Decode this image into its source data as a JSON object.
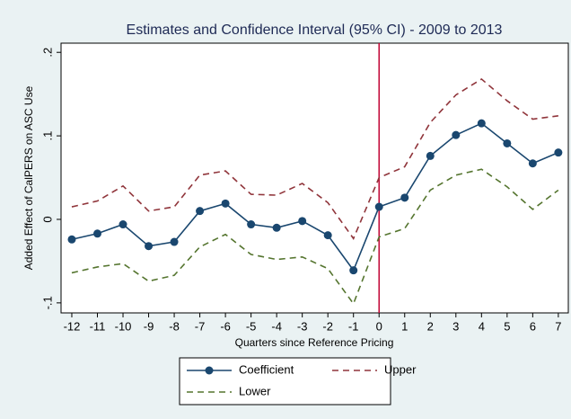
{
  "chart_data": {
    "type": "line",
    "title": "Estimates and Confidence Interval (95% CI) - 2009 to 2013",
    "x_label": "Quarters since Reference Pricing",
    "y_label": "Added Effect of CalPERS on ASC Use",
    "x": [
      -12,
      -11,
      -10,
      -9,
      -8,
      -7,
      -6,
      -5,
      -4,
      -3,
      -2,
      -1,
      0,
      1,
      2,
      3,
      4,
      5,
      6,
      7
    ],
    "series": [
      {
        "name": "Coefficient",
        "color": "#1a476f",
        "line_style": "solid",
        "marker": "circle",
        "values": [
          -0.024,
          -0.017,
          -0.006,
          -0.032,
          -0.027,
          0.01,
          0.019,
          -0.006,
          -0.01,
          -0.002,
          -0.019,
          -0.061,
          0.015,
          0.026,
          0.076,
          0.101,
          0.115,
          0.091,
          0.067,
          0.08
        ]
      },
      {
        "name": "Upper",
        "color": "#90353b",
        "line_style": "dashed",
        "values": [
          0.015,
          0.022,
          0.04,
          0.01,
          0.015,
          0.053,
          0.058,
          0.03,
          0.029,
          0.043,
          0.02,
          -0.023,
          0.05,
          0.063,
          0.116,
          0.149,
          0.168,
          0.142,
          0.12,
          0.124
        ]
      },
      {
        "name": "Lower",
        "color": "#55752f",
        "line_style": "dashed",
        "values": [
          -0.064,
          -0.057,
          -0.053,
          -0.074,
          -0.067,
          -0.033,
          -0.018,
          -0.042,
          -0.048,
          -0.045,
          -0.059,
          -0.101,
          -0.021,
          -0.011,
          0.035,
          0.053,
          0.06,
          0.039,
          0.012,
          0.035
        ]
      }
    ],
    "xline": 0,
    "xline_color": "#c10534",
    "xlim": [
      -12.42,
      7.39
    ],
    "xticks": [
      -12,
      -11,
      -10,
      -9,
      -8,
      -7,
      -6,
      -5,
      -4,
      -3,
      -2,
      -1,
      0,
      1,
      2,
      3,
      4,
      5,
      6,
      7
    ],
    "ylim": [
      -0.112,
      0.211
    ],
    "yticks": [
      {
        "value": -0.1,
        "label": "-.1"
      },
      0,
      {
        "value": 0.1,
        "label": ".1"
      },
      {
        "value": 0.2,
        "label": ".2"
      }
    ],
    "grid": false,
    "legend_position": "bottom"
  }
}
